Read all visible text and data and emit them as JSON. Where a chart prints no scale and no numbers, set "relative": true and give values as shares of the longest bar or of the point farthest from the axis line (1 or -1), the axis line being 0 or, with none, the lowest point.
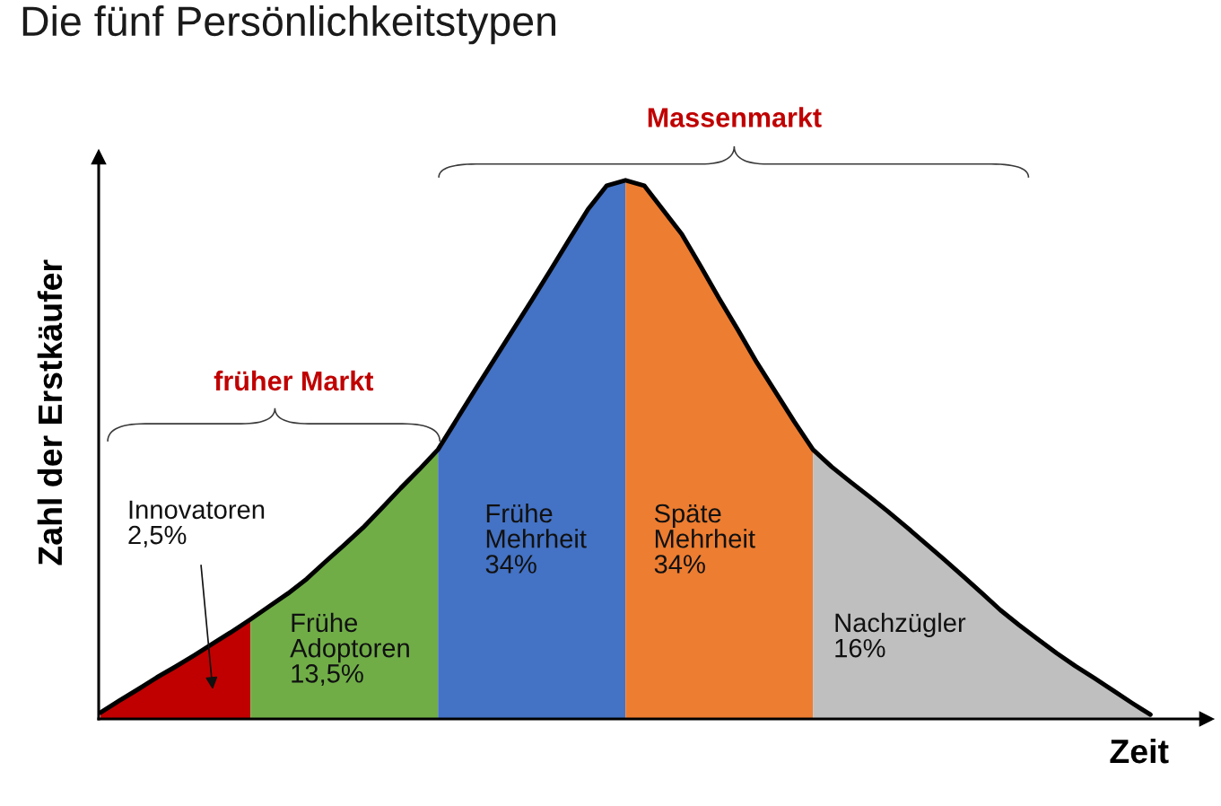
{
  "chart_data": {
    "type": "area",
    "title": "Die fünf Persönlichkeitstypen",
    "xlabel": "Zeit",
    "ylabel": "Zahl der Erstkäufer",
    "relative": true,
    "categories": [
      null,
      null,
      null,
      null,
      null,
      null,
      null,
      null,
      null,
      null,
      null,
      null,
      null,
      null,
      null,
      null,
      null,
      null,
      null,
      null,
      null,
      null,
      null,
      null,
      null,
      null,
      null,
      null,
      null,
      null,
      null,
      null,
      null,
      null,
      null,
      null,
      null,
      null,
      null,
      null,
      null,
      null,
      null,
      null,
      null,
      null,
      null,
      null,
      null,
      null,
      null,
      null,
      null,
      null,
      null,
      null,
      null
    ],
    "series": [
      {
        "name": "Innovatoren\n2,5%",
        "color": "#c00000",
        "values": [
          0.012,
          0.034,
          0.055,
          0.077,
          0.097,
          0.118,
          0.14,
          0.162,
          0.185,
          null,
          null,
          null,
          null,
          null,
          null,
          null,
          null,
          null,
          null,
          null,
          null,
          null,
          null,
          null,
          null,
          null,
          null,
          null,
          null,
          null,
          null,
          null,
          null,
          null,
          null,
          null,
          null,
          null,
          null,
          null,
          null,
          null,
          null,
          null,
          null,
          null,
          null,
          null,
          null,
          null,
          null,
          null,
          null,
          null,
          null,
          null,
          null
        ]
      },
      {
        "name": "Frühe\nAdoptoren\n13,5%",
        "color": "#70ad47",
        "values": [
          null,
          null,
          null,
          null,
          null,
          null,
          null,
          null,
          0.185,
          0.209,
          0.233,
          0.26,
          0.292,
          0.323,
          0.355,
          0.391,
          0.428,
          0.463,
          0.5,
          null,
          null,
          null,
          null,
          null,
          null,
          null,
          null,
          null,
          null,
          null,
          null,
          null,
          null,
          null,
          null,
          null,
          null,
          null,
          null,
          null,
          null,
          null,
          null,
          null,
          null,
          null,
          null,
          null,
          null,
          null,
          null,
          null,
          null,
          null,
          null,
          null,
          null
        ]
      },
      {
        "name": "Frühe\nMehrheit\n34%",
        "color": "#4472c4",
        "values": [
          null,
          null,
          null,
          null,
          null,
          null,
          null,
          null,
          null,
          null,
          null,
          null,
          null,
          null,
          null,
          null,
          null,
          null,
          0.5,
          0.556,
          0.612,
          0.667,
          0.722,
          0.777,
          0.833,
          0.89,
          0.946,
          0.99,
          1.0,
          null,
          null,
          null,
          null,
          null,
          null,
          null,
          null,
          null,
          null,
          null,
          null,
          null,
          null,
          null,
          null,
          null,
          null,
          null,
          null,
          null,
          null,
          null,
          null,
          null,
          null,
          null,
          null
        ]
      },
      {
        "name": "Späte\nMehrheit\n34%",
        "color": "#ed7d31",
        "values": [
          null,
          null,
          null,
          null,
          null,
          null,
          null,
          null,
          null,
          null,
          null,
          null,
          null,
          null,
          null,
          null,
          null,
          null,
          null,
          null,
          null,
          null,
          null,
          null,
          null,
          null,
          null,
          null,
          1.0,
          0.99,
          0.945,
          0.9,
          0.841,
          0.78,
          0.722,
          0.662,
          0.607,
          0.552,
          0.5,
          null,
          null,
          null,
          null,
          null,
          null,
          null,
          null,
          null,
          null,
          null,
          null,
          null,
          null,
          null,
          null,
          null,
          null
        ]
      },
      {
        "name": "Nachzügler\n16%",
        "color": "#bfbfbf",
        "values": [
          null,
          null,
          null,
          null,
          null,
          null,
          null,
          null,
          null,
          null,
          null,
          null,
          null,
          null,
          null,
          null,
          null,
          null,
          null,
          null,
          null,
          null,
          null,
          null,
          null,
          null,
          null,
          null,
          null,
          null,
          null,
          null,
          null,
          null,
          null,
          null,
          null,
          null,
          0.5,
          0.468,
          0.44,
          0.413,
          0.385,
          0.356,
          0.326,
          0.296,
          0.265,
          0.234,
          0.202,
          0.174,
          0.148,
          0.122,
          0.098,
          0.076,
          0.053,
          0.03,
          0.008
        ]
      },
      {
        "type": "line",
        "color": "#000000",
        "values": [
          0.012,
          0.034,
          0.055,
          0.077,
          0.097,
          0.118,
          0.14,
          0.162,
          0.185,
          0.209,
          0.233,
          0.26,
          0.292,
          0.323,
          0.355,
          0.391,
          0.428,
          0.463,
          0.5,
          0.556,
          0.612,
          0.667,
          0.722,
          0.777,
          0.833,
          0.89,
          0.946,
          0.99,
          1.0,
          0.99,
          0.945,
          0.9,
          0.841,
          0.78,
          0.722,
          0.662,
          0.607,
          0.552,
          0.5,
          0.468,
          0.44,
          0.413,
          0.385,
          0.356,
          0.326,
          0.296,
          0.265,
          0.234,
          0.202,
          0.174,
          0.148,
          0.122,
          0.098,
          0.076,
          0.053,
          0.03,
          0.008
        ]
      }
    ],
    "annotations": [
      "früher Markt",
      "Massenmarkt"
    ]
  }
}
